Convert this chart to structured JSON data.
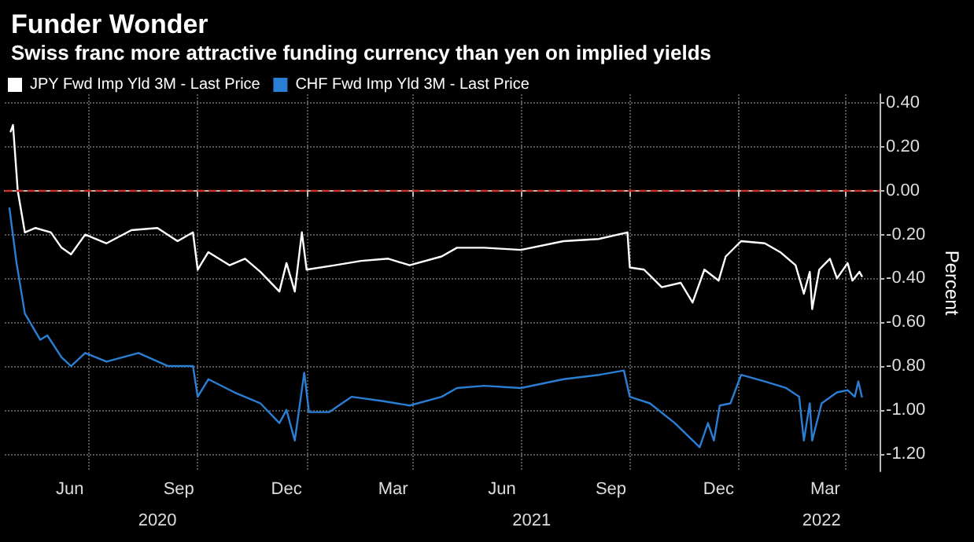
{
  "chart_data": {
    "type": "line",
    "title": "Funder Wonder",
    "subtitle": "Swiss franc more attractive funding currency than yen on implied yields",
    "ylabel": "Percent",
    "legend": "top left",
    "grid": true,
    "marker": "none",
    "line_style": "solid",
    "xlim": [
      "2020-04-21",
      "2022-04-30"
    ],
    "xticks": [
      {
        "value": "2020-06-15",
        "label": "Jun"
      },
      {
        "value": "2020-09-15",
        "label": "Sep"
      },
      {
        "value": "2020-12-15",
        "label": "Dec"
      },
      {
        "value": "2021-03-15",
        "label": "Mar"
      },
      {
        "value": "2021-06-15",
        "label": "Jun"
      },
      {
        "value": "2021-09-15",
        "label": "Sep"
      },
      {
        "value": "2021-12-15",
        "label": "Dec"
      },
      {
        "value": "2022-03-15",
        "label": "Mar"
      },
      {
        "value": "2020-07-01",
        "label": null
      },
      {
        "value": "2020-10-01",
        "label": null
      },
      {
        "value": "2021-01-01",
        "label": null
      },
      {
        "value": "2021-04-01",
        "label": null
      },
      {
        "value": "2021-07-01",
        "label": null
      },
      {
        "value": "2021-10-01",
        "label": null
      },
      {
        "value": "2022-01-01",
        "label": null
      },
      {
        "value": "2022-04-01",
        "label": null
      }
    ],
    "x2lim": [
      "2020-04-21",
      "2022-04-30"
    ],
    "x2ticks": [
      {
        "value": "2020-08-28",
        "label": "2020"
      },
      {
        "value": "2021-07-10",
        "label": "2021"
      },
      {
        "value": "2022-03-12",
        "label": "2022"
      }
    ],
    "ylim": [
      -1.28,
      0.44
    ],
    "yticks": [
      {
        "value": 0.4,
        "label": "0.40"
      },
      {
        "value": 0.2,
        "label": "0.20"
      },
      {
        "value": 0,
        "label": "0.00"
      },
      {
        "value": -0.2,
        "label": "-0.20"
      },
      {
        "value": -0.4,
        "label": "-0.40"
      },
      {
        "value": -0.6,
        "label": "-0.60"
      },
      {
        "value": -0.8,
        "label": "-0.80"
      },
      {
        "value": -1,
        "label": "-1.00"
      },
      {
        "value": -1.2,
        "label": "-1.20"
      }
    ],
    "ref_lines": [
      {
        "axis": "y",
        "value": 0,
        "color": "#c8312b",
        "line_style": "dashed"
      }
    ],
    "series": [
      {
        "name": "JPY Fwd Imp Yld 3M - Last Price",
        "color": "#ffffff",
        "x": [
          "2020-04-26",
          "2020-04-28",
          "2020-05-02",
          "2020-05-08",
          "2020-05-17",
          "2020-05-30",
          "2020-06-08",
          "2020-06-16",
          "2020-06-28",
          "2020-07-16",
          "2020-08-06",
          "2020-08-28",
          "2020-09-14",
          "2020-09-27",
          "2020-10-01",
          "2020-10-10",
          "2020-10-28",
          "2020-11-10",
          "2020-11-23",
          "2020-12-09",
          "2020-12-15",
          "2020-12-22",
          "2020-12-28",
          "2021-01-01",
          "2021-01-25",
          "2021-02-16",
          "2021-03-11",
          "2021-03-29",
          "2021-04-25",
          "2021-05-08",
          "2021-05-31",
          "2021-07-01",
          "2021-08-06",
          "2021-09-05",
          "2021-09-29",
          "2021-10-01",
          "2021-10-13",
          "2021-10-28",
          "2021-11-13",
          "2021-11-23",
          "2021-12-03",
          "2021-12-15",
          "2021-12-21",
          "2022-01-03",
          "2022-01-23",
          "2022-02-05",
          "2022-02-18",
          "2022-02-25",
          "2022-03-02",
          "2022-03-04",
          "2022-03-10",
          "2022-03-19",
          "2022-03-25",
          "2022-04-03",
          "2022-04-07",
          "2022-04-13",
          "2022-04-15"
        ],
        "values": [
          0.27,
          0.3,
          0.0,
          -0.19,
          -0.17,
          -0.19,
          -0.26,
          -0.29,
          -0.2,
          -0.24,
          -0.18,
          -0.17,
          -0.23,
          -0.19,
          -0.36,
          -0.28,
          -0.34,
          -0.31,
          -0.37,
          -0.46,
          -0.33,
          -0.46,
          -0.19,
          -0.36,
          -0.34,
          -0.32,
          -0.31,
          -0.34,
          -0.3,
          -0.26,
          -0.26,
          -0.27,
          -0.23,
          -0.22,
          -0.19,
          -0.35,
          -0.36,
          -0.44,
          -0.42,
          -0.51,
          -0.36,
          -0.41,
          -0.3,
          -0.23,
          -0.24,
          -0.28,
          -0.34,
          -0.47,
          -0.37,
          -0.54,
          -0.36,
          -0.31,
          -0.4,
          -0.33,
          -0.41,
          -0.37,
          -0.39
        ]
      },
      {
        "name": "CHF Fwd Imp Yld 3M - Last Price",
        "color": "#2a7fd4",
        "x": [
          "2020-04-25",
          "2020-05-01",
          "2020-05-08",
          "2020-05-21",
          "2020-05-27",
          "2020-06-08",
          "2020-06-16",
          "2020-06-28",
          "2020-07-16",
          "2020-08-12",
          "2020-09-06",
          "2020-09-27",
          "2020-10-01",
          "2020-10-10",
          "2020-11-01",
          "2020-11-23",
          "2020-12-09",
          "2020-12-15",
          "2020-12-22",
          "2020-12-30",
          "2021-01-03",
          "2021-01-20",
          "2021-02-08",
          "2021-03-07",
          "2021-03-29",
          "2021-04-25",
          "2021-05-08",
          "2021-05-31",
          "2021-07-01",
          "2021-08-06",
          "2021-09-05",
          "2021-09-26",
          "2021-10-01",
          "2021-10-18",
          "2021-11-08",
          "2021-11-29",
          "2021-12-06",
          "2021-12-11",
          "2021-12-16",
          "2021-12-25",
          "2022-01-03",
          "2022-01-23",
          "2022-02-10",
          "2022-02-21",
          "2022-02-25",
          "2022-03-02",
          "2022-03-04",
          "2022-03-12",
          "2022-03-25",
          "2022-04-03",
          "2022-04-09",
          "2022-04-12",
          "2022-04-15"
        ],
        "values": [
          -0.08,
          -0.33,
          -0.56,
          -0.68,
          -0.66,
          -0.76,
          -0.8,
          -0.74,
          -0.78,
          -0.74,
          -0.8,
          -0.8,
          -0.94,
          -0.86,
          -0.92,
          -0.97,
          -1.06,
          -1.0,
          -1.14,
          -0.83,
          -1.01,
          -1.01,
          -0.94,
          -0.96,
          -0.98,
          -0.94,
          -0.9,
          -0.89,
          -0.9,
          -0.86,
          -0.84,
          -0.82,
          -0.94,
          -0.97,
          -1.06,
          -1.17,
          -1.06,
          -1.14,
          -0.98,
          -0.97,
          -0.84,
          -0.87,
          -0.9,
          -0.94,
          -1.14,
          -0.97,
          -1.14,
          -0.97,
          -0.92,
          -0.91,
          -0.94,
          -0.87,
          -0.94
        ]
      }
    ]
  }
}
